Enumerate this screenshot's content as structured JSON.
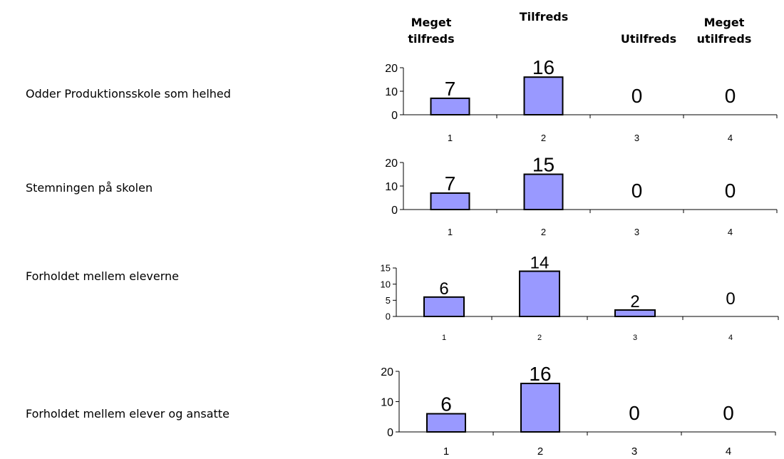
{
  "headers": [
    {
      "line1": "Meget",
      "line2": "tilfreds"
    },
    {
      "line1": "Tilfreds",
      "line2": ""
    },
    {
      "line1": "",
      "line2": "Utilfreds"
    },
    {
      "line1": "Meget",
      "line2": "utilfreds"
    }
  ],
  "questions": [
    {
      "label": "Odder Produktionsskole som helhed"
    },
    {
      "label": "Stemningen på skolen"
    },
    {
      "label": "Forholdet mellem eleverne"
    },
    {
      "label": "Forholdet mellem elever og ansatte"
    }
  ],
  "colors": {
    "bar_fill": "#9999ff",
    "bar_stroke": "#000000",
    "axis": "#000000"
  },
  "chart_data": [
    {
      "type": "bar",
      "title": "",
      "categories": [
        "1",
        "2",
        "3",
        "4"
      ],
      "values": [
        7,
        16,
        0,
        0
      ],
      "ylim": [
        0,
        20
      ],
      "yticks": [
        0,
        10,
        20
      ],
      "data_labels": [
        "7",
        "16",
        "0",
        "0"
      ],
      "grid": false
    },
    {
      "type": "bar",
      "title": "",
      "categories": [
        "1",
        "2",
        "3",
        "4"
      ],
      "values": [
        7,
        15,
        0,
        0
      ],
      "ylim": [
        0,
        20
      ],
      "yticks": [
        0,
        10,
        20
      ],
      "data_labels": [
        "7",
        "15",
        "0",
        "0"
      ],
      "grid": false
    },
    {
      "type": "bar",
      "title": "",
      "categories": [
        "1",
        "2",
        "3",
        "4"
      ],
      "values": [
        6,
        14,
        2,
        0
      ],
      "ylim": [
        0,
        15
      ],
      "yticks": [
        0,
        5,
        10,
        15
      ],
      "data_labels": [
        "6",
        "14",
        "2",
        "0"
      ],
      "grid": false
    },
    {
      "type": "bar",
      "title": "",
      "categories": [
        "1",
        "2",
        "3",
        "4"
      ],
      "values": [
        6,
        16,
        0,
        0
      ],
      "ylim": [
        0,
        20
      ],
      "yticks": [
        0,
        10,
        20
      ],
      "data_labels": [
        "6",
        "16",
        "0",
        "0"
      ],
      "grid": false
    }
  ]
}
